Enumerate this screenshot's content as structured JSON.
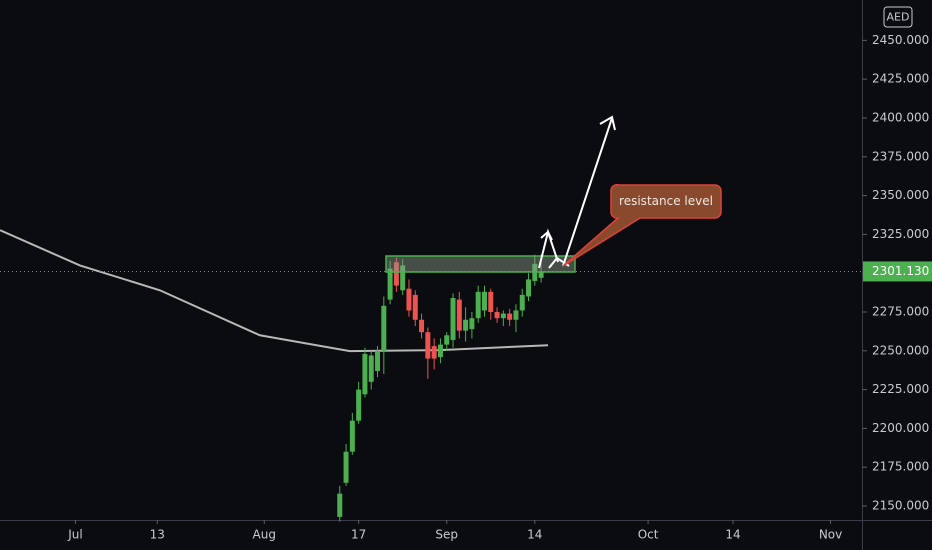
{
  "chart_data": {
    "type": "candlestick",
    "currency": "AED",
    "x": [
      42,
      43,
      44,
      45,
      46,
      47,
      48,
      49,
      50,
      51,
      52,
      53,
      54,
      55,
      56,
      57,
      58,
      59,
      60,
      61,
      62,
      63,
      64,
      65,
      66,
      67,
      68,
      69,
      70,
      71,
      72,
      73,
      74
    ],
    "open": [
      2143,
      2165,
      2185,
      2205,
      2222,
      2230,
      2237,
      2250,
      2283,
      2307,
      2289,
      2290,
      2286,
      2270,
      2262,
      2253,
      2246,
      2254,
      2257,
      2283,
      2263,
      2264,
      2271,
      2276,
      2288,
      2275,
      2271,
      2274,
      2270,
      2276,
      2285,
      2295,
      2297
    ],
    "high": [
      2163,
      2190,
      2210,
      2230,
      2252,
      2250,
      2253,
      2285,
      2308,
      2310,
      2309,
      2296,
      2289,
      2274,
      2265,
      2258,
      2258,
      2262,
      2287,
      2288,
      2278,
      2275,
      2292,
      2292,
      2290,
      2278,
      2276,
      2277,
      2280,
      2290,
      2300,
      2312,
      2312
    ],
    "low": [
      2140,
      2163,
      2183,
      2203,
      2220,
      2225,
      2233,
      2235,
      2280,
      2288,
      2286,
      2272,
      2266,
      2258,
      2232,
      2238,
      2242,
      2250,
      2252,
      2258,
      2256,
      2258,
      2268,
      2272,
      2270,
      2268,
      2266,
      2266,
      2262,
      2272,
      2282,
      2292,
      2294
    ],
    "close": [
      2158,
      2185,
      2205,
      2225,
      2248,
      2247,
      2250,
      2279,
      2303,
      2292,
      2305,
      2276,
      2270,
      2262,
      2245,
      2245,
      2254,
      2260,
      2284,
      2263,
      2270,
      2271,
      2288,
      2288,
      2275,
      2271,
      2274,
      2270,
      2276,
      2286,
      2296,
      2306,
      2301.13
    ],
    "up_color": "#4caf50",
    "down_color": "#ef5350",
    "moving_average": {
      "color": "#b8b8b8",
      "x": [
        -12,
        0.7,
        13.4,
        29.3,
        43.6,
        57.9,
        75.1
      ],
      "values": [
        2327.7,
        2305,
        2289,
        2260,
        2249.8,
        2250.4,
        2253.6
      ]
    },
    "last_price": {
      "value": 2301.13,
      "label": "2301.130"
    },
    "callout": "resistance level",
    "xlim": [
      -12,
      125
    ],
    "ylim": [
      2141,
      2476
    ],
    "xticks": [
      {
        "value": 0,
        "label": "Jul"
      },
      13,
      {
        "value": 30,
        "label": "Aug"
      },
      {
        "value": 45,
        "label": "17"
      },
      {
        "value": 59,
        "label": "Sep"
      },
      {
        "value": 73,
        "label": "14"
      },
      {
        "value": 91,
        "label": "Oct"
      },
      {
        "value": 104.5,
        "label": "14"
      },
      {
        "value": 120,
        "label": "Nov"
      }
    ],
    "yticks": [
      {
        "value": 2150,
        "label": "2150.000"
      },
      {
        "value": 2175,
        "label": "2175.000"
      },
      {
        "value": 2200,
        "label": "2200.000"
      },
      {
        "value": 2225,
        "label": "2225.000"
      },
      {
        "value": 2250,
        "label": "2250.000"
      },
      {
        "value": 2275,
        "label": "2275.000"
      },
      {
        "value": 2300,
        "label": "2300.000"
      },
      {
        "value": 2325,
        "label": "2325.000"
      },
      {
        "value": 2350,
        "label": "2350.000"
      },
      {
        "value": 2375,
        "label": "2375.000"
      },
      {
        "value": 2400,
        "label": "2400.000"
      },
      {
        "value": 2425,
        "label": "2425.000"
      },
      {
        "value": 2450,
        "label": "2450.000"
      }
    ],
    "grid": false
  }
}
